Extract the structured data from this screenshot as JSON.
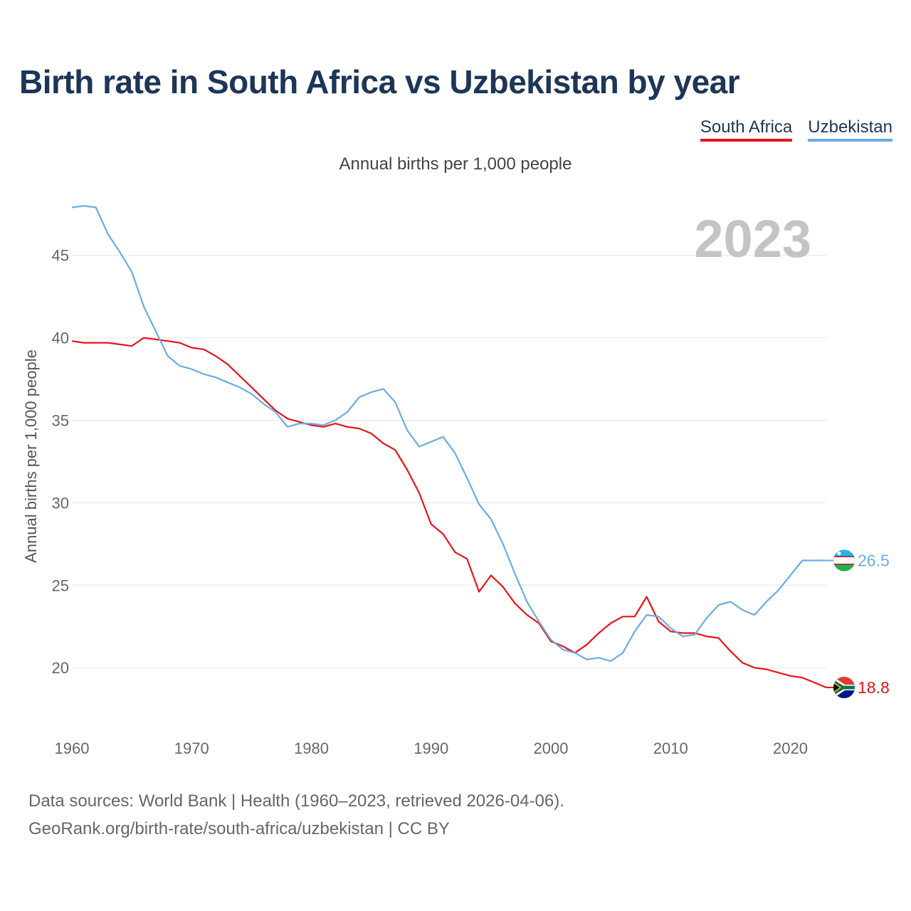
{
  "title": "Birth rate in South Africa vs Uzbekistan by year",
  "legend": [
    {
      "label": "South Africa",
      "color": "#e8141b"
    },
    {
      "label": "Uzbekistan",
      "color": "#6aace4"
    }
  ],
  "subtitle": "Annual births per 1,000 people",
  "year_watermark": "2023",
  "sources": {
    "line1": "Data sources: World Bank | Health (1960–2023, retrieved 2026-04-06).",
    "line2": "GeoRank.org/birth-rate/south-africa/uzbekistan | CC BY"
  },
  "chart_data": {
    "type": "line",
    "ylabel": "Annual births per 1,000 people",
    "xlabel": "",
    "xlim": [
      1960,
      2023
    ],
    "ylim": [
      16.9,
      49
    ],
    "y_ticks": [
      20,
      25,
      30,
      35,
      40,
      45
    ],
    "x_ticks": [
      1960,
      1970,
      1980,
      1990,
      2000,
      2010,
      2020
    ],
    "x": [
      1960,
      1961,
      1962,
      1963,
      1964,
      1965,
      1966,
      1967,
      1968,
      1969,
      1970,
      1971,
      1972,
      1973,
      1974,
      1975,
      1976,
      1977,
      1978,
      1979,
      1980,
      1981,
      1982,
      1983,
      1984,
      1985,
      1986,
      1987,
      1988,
      1989,
      1990,
      1991,
      1992,
      1993,
      1994,
      1995,
      1996,
      1997,
      1998,
      1999,
      2000,
      2001,
      2002,
      2003,
      2004,
      2005,
      2006,
      2007,
      2008,
      2009,
      2010,
      2011,
      2012,
      2013,
      2014,
      2015,
      2016,
      2017,
      2018,
      2019,
      2020,
      2021,
      2022,
      2023
    ],
    "series": [
      {
        "name": "South Africa",
        "color": "#e8141b",
        "end_label": "18.8",
        "values": [
          39.8,
          39.7,
          39.7,
          39.7,
          39.6,
          39.5,
          40.0,
          39.9,
          39.8,
          39.7,
          39.4,
          39.3,
          38.9,
          38.4,
          37.7,
          37.0,
          36.3,
          35.6,
          35.1,
          34.9,
          34.7,
          34.6,
          34.8,
          34.6,
          34.5,
          34.2,
          33.6,
          33.2,
          32.0,
          30.6,
          28.7,
          28.1,
          27.0,
          26.6,
          24.6,
          25.6,
          24.9,
          23.9,
          23.2,
          22.7,
          21.6,
          21.3,
          20.9,
          21.4,
          22.1,
          22.7,
          23.1,
          23.1,
          24.3,
          22.8,
          22.2,
          22.1,
          22.1,
          21.9,
          21.8,
          21.0,
          20.3,
          20.0,
          19.9,
          19.7,
          19.5,
          19.4,
          19.1,
          18.8
        ]
      },
      {
        "name": "Uzbekistan",
        "color": "#6aace4",
        "end_label": "26.5",
        "values": [
          47.9,
          48.0,
          47.9,
          46.3,
          45.2,
          44.0,
          41.9,
          40.4,
          38.9,
          38.3,
          38.1,
          37.8,
          37.6,
          37.3,
          37.0,
          36.6,
          36.0,
          35.5,
          34.6,
          34.8,
          34.8,
          34.7,
          35.0,
          35.5,
          36.4,
          36.7,
          36.9,
          36.1,
          34.4,
          33.4,
          33.7,
          34.0,
          33.0,
          31.5,
          29.9,
          29.0,
          27.5,
          25.7,
          24.0,
          22.8,
          21.7,
          21.1,
          20.9,
          20.5,
          20.6,
          20.4,
          20.9,
          22.2,
          23.2,
          23.1,
          22.4,
          21.9,
          22.0,
          23.0,
          23.8,
          24.0,
          23.5,
          23.2,
          24.0,
          24.7,
          25.6,
          26.5,
          26.5,
          26.5
        ]
      }
    ]
  }
}
